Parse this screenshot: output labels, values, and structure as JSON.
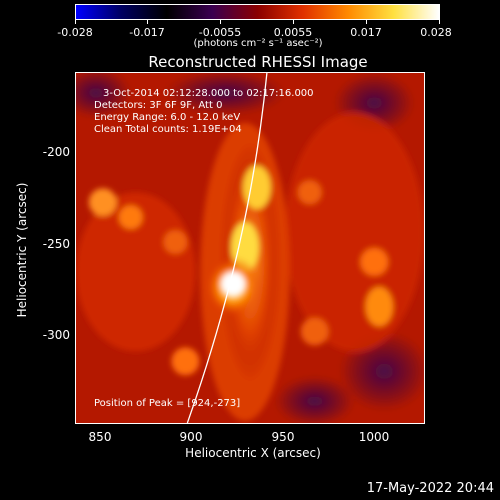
{
  "colorbar": {
    "tick_labels": [
      "-0.028",
      "-0.017",
      "-0.0055",
      "0.0055",
      "0.017",
      "0.028"
    ],
    "units": "(photons cm⁻² s⁻¹ asec⁻²)",
    "colors": [
      "#0000ff",
      "#000060",
      "#000000",
      "#3a0050",
      "#8a0000",
      "#e03000",
      "#ff8a00",
      "#ffe040",
      "#ffffff"
    ]
  },
  "title": "Reconstructed RHESSI Image",
  "annotations": {
    "time_range": "3-Oct-2014 02:12:28.000 to 02:17:16.000",
    "detectors": "Detectors: 3F 6F 9F, Att 0",
    "energy": "Energy Range: 6.0 - 12.0 keV",
    "clean": "Clean    Total counts: 1.19E+04",
    "peak": "Position of Peak = [924,-273]"
  },
  "x_axis": {
    "label": "Heliocentric X (arcsec)",
    "tick_labels": [
      "850",
      "900",
      "950",
      "1000"
    ]
  },
  "y_axis": {
    "label": "Heliocentric Y (arcsec)",
    "tick_labels": [
      "-200",
      "-250",
      "-300"
    ]
  },
  "footer": {
    "date": "17-May-2022 20:44"
  }
}
